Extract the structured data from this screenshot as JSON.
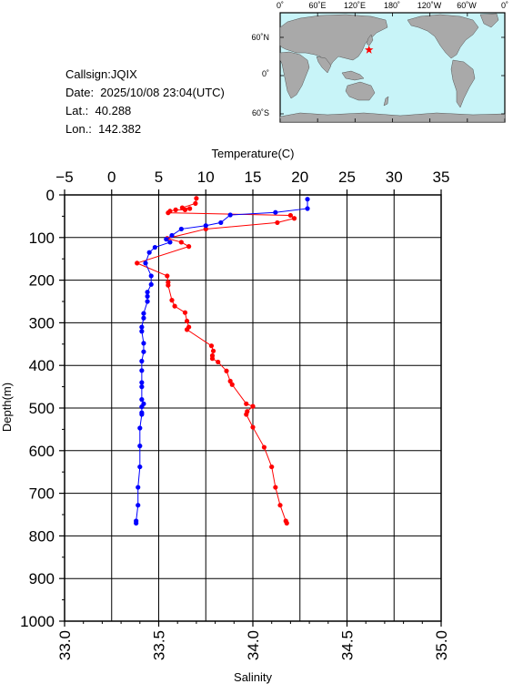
{
  "info": {
    "callsign": "Callsign:JQIX",
    "date": "Date:  2025/10/08 23:04(UTC)",
    "lat": "Lat.:  40.288",
    "lon": "Lon.:  142.382"
  },
  "map": {
    "lon_labels": [
      "0˚",
      "60˚E",
      "120˚E",
      "180˚",
      "120˚W",
      "60˚W",
      "0˚"
    ],
    "lat_labels": [
      "60˚N",
      "0˚",
      "60˚S"
    ],
    "ocean_color": "#c8f4f8",
    "land_color": "#a9a9a9",
    "station_marker": {
      "lon": 142.382,
      "lat": 40.288,
      "color": "#ff0000"
    }
  },
  "chart_data": {
    "type": "scatter",
    "top_axis_label": "Temperature(C)",
    "bottom_axis_label": "Salinity",
    "ylabel": "Depth(m)",
    "temperature_ticks": [
      "−5",
      "0",
      "5",
      "10",
      "15",
      "20",
      "25",
      "30",
      "35"
    ],
    "salinity_ticks": [
      "33.0",
      "33.5",
      "34.0",
      "34.5",
      "35.0"
    ],
    "depth_ticks": [
      "0",
      "100",
      "200",
      "300",
      "400",
      "500",
      "600",
      "700",
      "800",
      "900",
      "1000"
    ],
    "temperature_range": [
      -5,
      35
    ],
    "salinity_range": [
      33.0,
      35.0
    ],
    "depth_range": [
      0,
      1000
    ],
    "grid": true,
    "series": [
      {
        "key": "temperature",
        "axis": "top",
        "color": "#ff0000",
        "points": [
          [
            9.0,
            8
          ],
          [
            8.9,
            20
          ],
          [
            7.5,
            30
          ],
          [
            8.3,
            32
          ],
          [
            7.8,
            35
          ],
          [
            6.8,
            35
          ],
          [
            6.2,
            38
          ],
          [
            6.0,
            42
          ],
          [
            19.0,
            48
          ],
          [
            19.4,
            55
          ],
          [
            17.6,
            65
          ],
          [
            10.0,
            80
          ],
          [
            5.9,
            102
          ],
          [
            7.4,
            111
          ],
          [
            8.2,
            121
          ],
          [
            2.7,
            160
          ],
          [
            5.9,
            190
          ],
          [
            6.0,
            205
          ],
          [
            6.0,
            212
          ],
          [
            6.4,
            247
          ],
          [
            6.7,
            261
          ],
          [
            7.8,
            276
          ],
          [
            8.0,
            296
          ],
          [
            8.2,
            310
          ],
          [
            8.0,
            316
          ],
          [
            10.6,
            354
          ],
          [
            10.8,
            366
          ],
          [
            10.7,
            377
          ],
          [
            10.7,
            384
          ],
          [
            11.3,
            392
          ],
          [
            12.2,
            413
          ],
          [
            12.6,
            437
          ],
          [
            12.8,
            445
          ],
          [
            14.3,
            490
          ],
          [
            15.0,
            496
          ],
          [
            14.4,
            508
          ],
          [
            14.3,
            515
          ],
          [
            15.0,
            545
          ],
          [
            16.2,
            592
          ],
          [
            17.0,
            638
          ],
          [
            17.4,
            686
          ],
          [
            17.9,
            728
          ],
          [
            18.5,
            765
          ],
          [
            18.6,
            770
          ]
        ]
      },
      {
        "key": "salinity",
        "axis": "bottom",
        "color": "#0000ff",
        "points": [
          [
            34.29,
            10
          ],
          [
            34.29,
            32
          ],
          [
            34.12,
            41
          ],
          [
            33.88,
            47
          ],
          [
            33.83,
            65
          ],
          [
            33.75,
            72
          ],
          [
            33.62,
            80
          ],
          [
            33.57,
            95
          ],
          [
            33.54,
            104
          ],
          [
            33.56,
            111
          ],
          [
            33.48,
            123
          ],
          [
            33.45,
            135
          ],
          [
            33.43,
            160
          ],
          [
            33.46,
            190
          ],
          [
            33.46,
            210
          ],
          [
            33.44,
            228
          ],
          [
            33.44,
            238
          ],
          [
            33.44,
            250
          ],
          [
            33.42,
            278
          ],
          [
            33.42,
            289
          ],
          [
            33.41,
            310
          ],
          [
            33.41,
            320
          ],
          [
            33.42,
            348
          ],
          [
            33.42,
            368
          ],
          [
            33.41,
            390
          ],
          [
            33.41,
            412
          ],
          [
            33.41,
            440
          ],
          [
            33.41,
            450
          ],
          [
            33.41,
            480
          ],
          [
            33.42,
            490
          ],
          [
            33.41,
            497
          ],
          [
            33.41,
            511
          ],
          [
            33.41,
            515
          ],
          [
            33.4,
            547
          ],
          [
            33.4,
            589
          ],
          [
            33.4,
            638
          ],
          [
            33.39,
            686
          ],
          [
            33.39,
            728
          ],
          [
            33.38,
            765
          ],
          [
            33.38,
            770
          ]
        ]
      }
    ]
  }
}
